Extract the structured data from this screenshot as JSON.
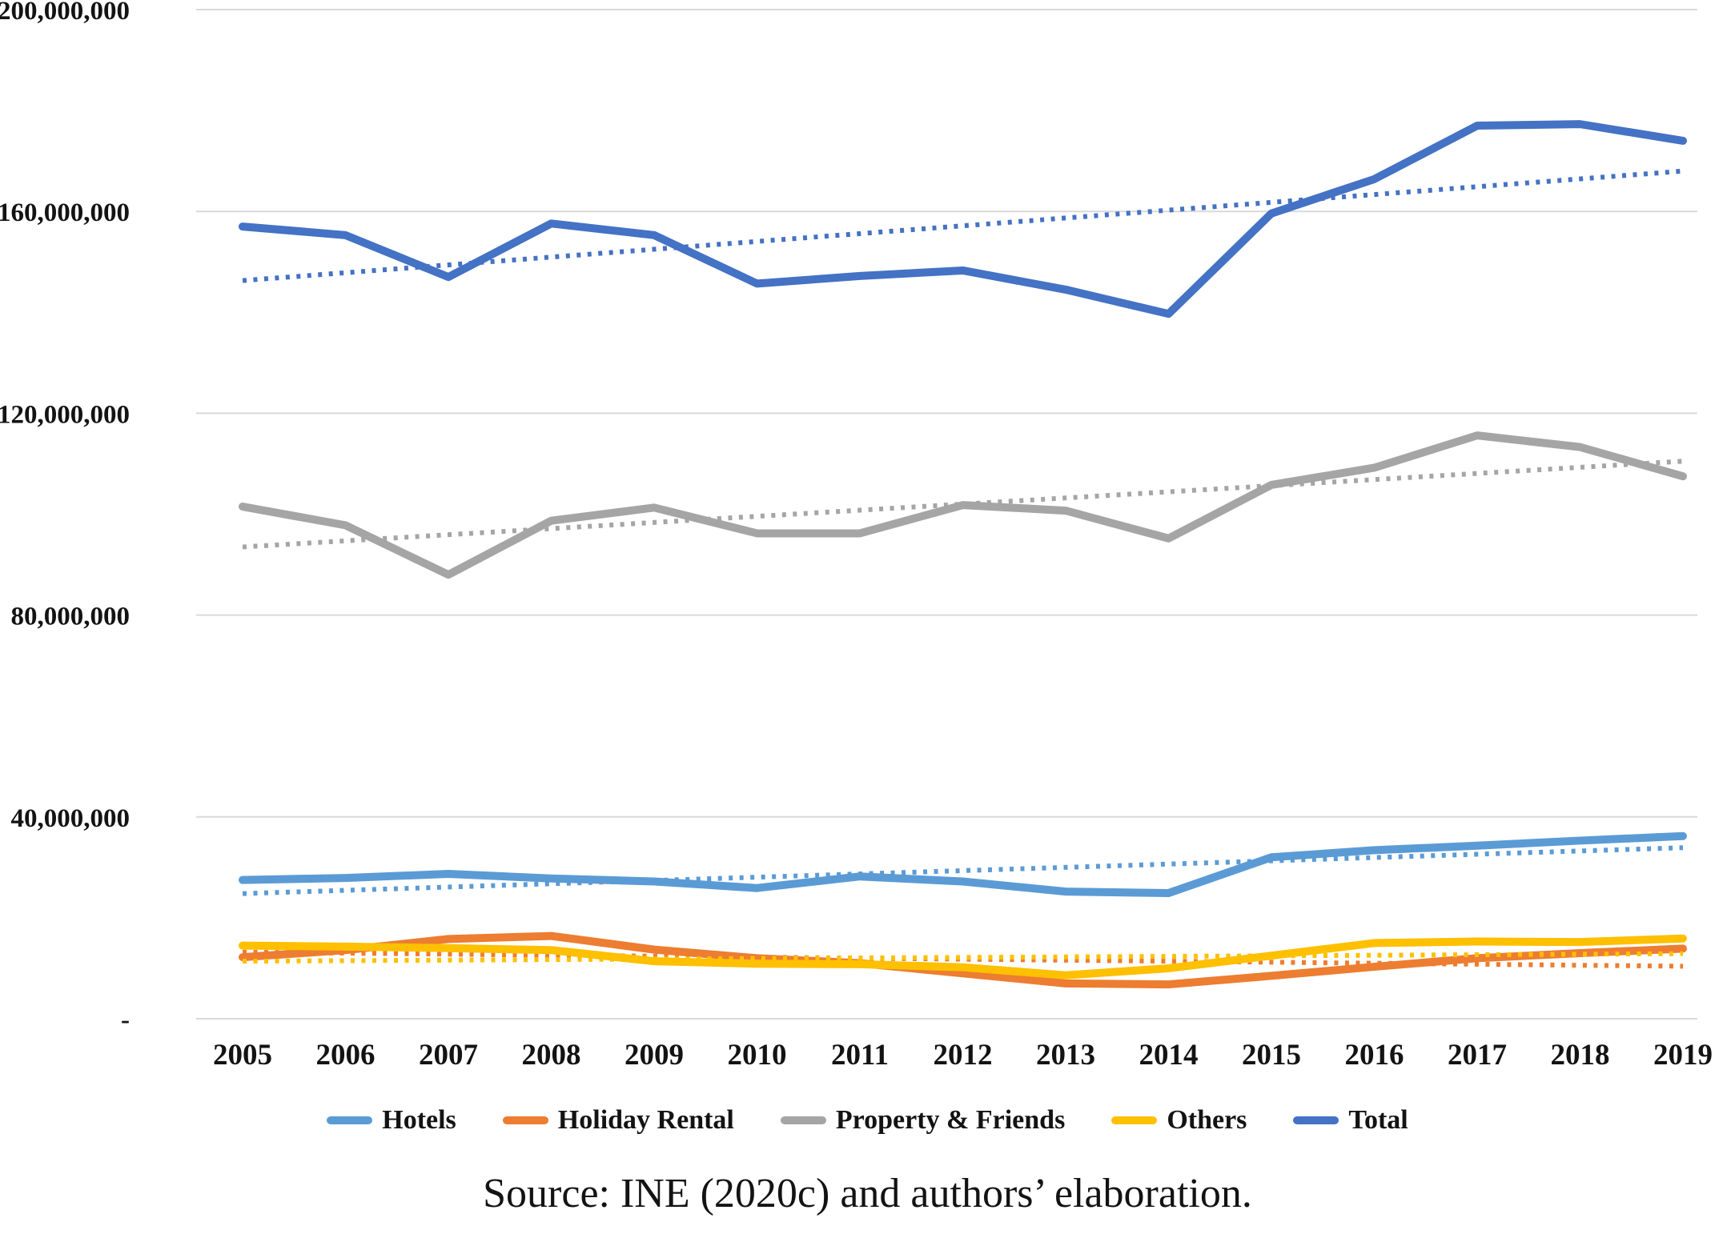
{
  "chart_data": {
    "type": "line",
    "title": "",
    "categories": [
      "2005",
      "2006",
      "2007",
      "2008",
      "2009",
      "2010",
      "2011",
      "2012",
      "2013",
      "2014",
      "2015",
      "2016",
      "2017",
      "2018",
      "2019"
    ],
    "y_axis": {
      "min": 0,
      "max": 200000000,
      "tick_step": 40000000,
      "tick_labels": [
        "-",
        "40,000,000",
        "80,000,000",
        "120,000,000",
        "160,000,000",
        "200,000,000"
      ]
    },
    "grid": "horizontal",
    "gridline_color": "#d9d9d9",
    "legend_position": "bottom",
    "series": [
      {
        "name": "Hotels",
        "color": "#5B9BD5",
        "values": [
          27500000,
          27900000,
          28700000,
          27800000,
          27200000,
          25900000,
          28200000,
          27200000,
          25200000,
          24900000,
          32000000,
          33400000,
          34300000,
          35300000,
          36200000
        ]
      },
      {
        "name": "Holiday Rental",
        "color": "#ED7D31",
        "values": [
          12200000,
          13600000,
          15800000,
          16400000,
          13700000,
          12000000,
          11000000,
          9000000,
          7000000,
          6800000,
          8500000,
          10300000,
          12000000,
          13000000,
          13900000
        ]
      },
      {
        "name": "Property & Friends",
        "color": "#A5A5A5",
        "values": [
          101500000,
          97800000,
          88000000,
          98700000,
          101300000,
          96200000,
          96200000,
          101800000,
          100700000,
          95200000,
          105800000,
          109200000,
          115600000,
          113300000,
          107500000
        ]
      },
      {
        "name": "Others",
        "color": "#FFC000",
        "values": [
          14500000,
          14300000,
          14000000,
          13600000,
          11400000,
          10900000,
          10800000,
          10200000,
          8600000,
          10000000,
          12500000,
          15000000,
          15300000,
          15200000,
          15900000
        ]
      },
      {
        "name": "Total",
        "color": "#4472C4",
        "values": [
          157000000,
          155300000,
          147000000,
          157600000,
          155300000,
          145700000,
          147200000,
          148300000,
          144500000,
          139700000,
          159600000,
          166400000,
          177000000,
          177300000,
          174000000
        ]
      }
    ],
    "trendlines": [
      {
        "series": "Hotels",
        "color": "#5B9BD5",
        "style": "dotted",
        "start": 24800000,
        "end": 33900000
      },
      {
        "series": "Holiday Rental",
        "color": "#ED7D31",
        "style": "dotted",
        "start": 13200000,
        "end": 10400000
      },
      {
        "series": "Property & Friends",
        "color": "#A5A5A5",
        "style": "dotted",
        "start": 93500000,
        "end": 110500000
      },
      {
        "series": "Others",
        "color": "#FFC000",
        "style": "dotted",
        "start": 11400000,
        "end": 12900000
      },
      {
        "series": "Total",
        "color": "#4472C4",
        "style": "dotted",
        "start": 146300000,
        "end": 168000000
      }
    ]
  },
  "legend": {
    "items": [
      {
        "label": "Hotels"
      },
      {
        "label": "Holiday Rental"
      },
      {
        "label": "Property & Friends"
      },
      {
        "label": "Others"
      },
      {
        "label": "Total"
      }
    ]
  },
  "source_note": "Source: INE (2020c) and authors’ elaboration."
}
